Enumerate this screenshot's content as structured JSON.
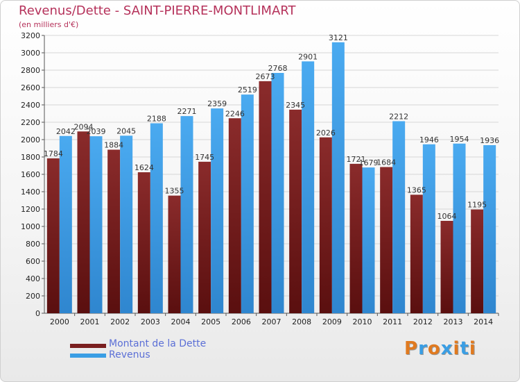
{
  "header": {
    "title": "Revenus/Dette - SAINT-PIERRE-MONTLIMART",
    "subtitle": "(en milliers d'€)"
  },
  "legend": {
    "items": [
      {
        "label": "Montant de la Dette",
        "color": "#7a1f1f"
      },
      {
        "label": "Revenus",
        "color": "#3a9ee4"
      }
    ]
  },
  "logo": {
    "text": "Proxiti",
    "colors": [
      "#e07a20",
      "#3a9ee4",
      "#e07a20",
      "#3a9ee4",
      "#e07a20",
      "#3a9ee4",
      "#e07a20"
    ]
  },
  "chart_data": {
    "type": "bar",
    "title": "Revenus/Dette - SAINT-PIERRE-MONTLIMART",
    "subtitle": "(en milliers d'€)",
    "categories": [
      "2000",
      "2001",
      "2002",
      "2003",
      "2004",
      "2005",
      "2006",
      "2007",
      "2008",
      "2009",
      "2010",
      "2011",
      "2012",
      "2013",
      "2014"
    ],
    "series": [
      {
        "name": "Montant de la Dette",
        "color": "#7a1f1f",
        "values": [
          1784,
          2094,
          1884,
          1624,
          1355,
          1745,
          2246,
          2673,
          2345,
          2026,
          1721,
          1684,
          1365,
          1064,
          1195
        ],
        "labels": [
          "1784",
          "2094",
          "1884",
          "1624",
          "1355",
          "1745",
          "2246",
          "2673",
          "2345",
          "2026",
          "1721",
          "1684",
          "1365",
          "1064",
          "1195"
        ]
      },
      {
        "name": "Revenus",
        "color": "#3a9ee4",
        "values": [
          2042,
          2039,
          2045,
          2188,
          2271,
          2359,
          2519,
          2768,
          2901,
          3121,
          1679,
          2212,
          1946,
          1954,
          1936
        ],
        "labels": [
          "2042",
          "2039",
          "2045",
          "2188",
          "2271",
          "2359",
          "2519",
          "2768",
          "2901",
          "3121",
          "1679",
          "2212",
          "1946",
          "1954",
          "1936"
        ]
      }
    ],
    "ylim": [
      0,
      3200
    ],
    "ytick_step": 200,
    "grid": true,
    "legend_position": "bottom-left"
  }
}
